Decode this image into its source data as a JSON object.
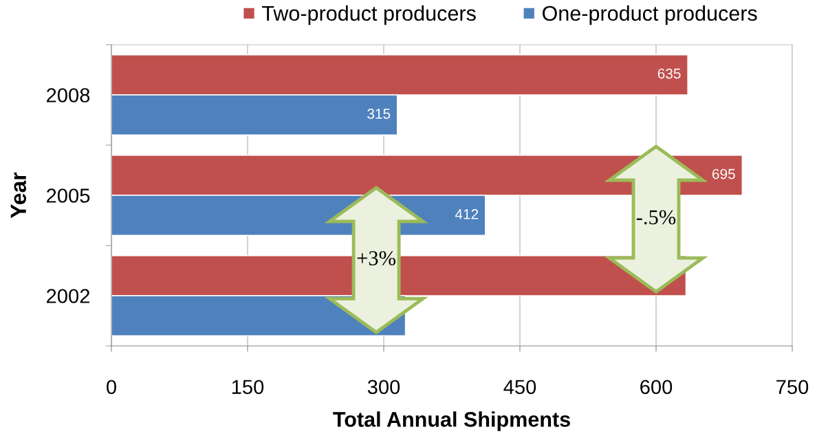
{
  "chart_data": {
    "type": "bar",
    "orientation": "horizontal",
    "categories": [
      "2008",
      "2005",
      "2002"
    ],
    "series": [
      {
        "name": "Two-product producers",
        "color": "#c0504d",
        "values": [
          635,
          695,
          633
        ],
        "value_labels": [
          "635",
          "695",
          null
        ]
      },
      {
        "name": "One-product producers",
        "color": "#4f81bd",
        "values": [
          315,
          412,
          324
        ],
        "value_labels": [
          "315",
          "412",
          null
        ]
      }
    ],
    "xlabel": "Total Annual Shipments",
    "ylabel": "Year",
    "xlim": [
      0,
      750
    ],
    "xticks": [
      0,
      150,
      300,
      450,
      600,
      750
    ],
    "grid": "x",
    "legend": "top",
    "annotations": [
      "+3%",
      "-.5%"
    ]
  }
}
